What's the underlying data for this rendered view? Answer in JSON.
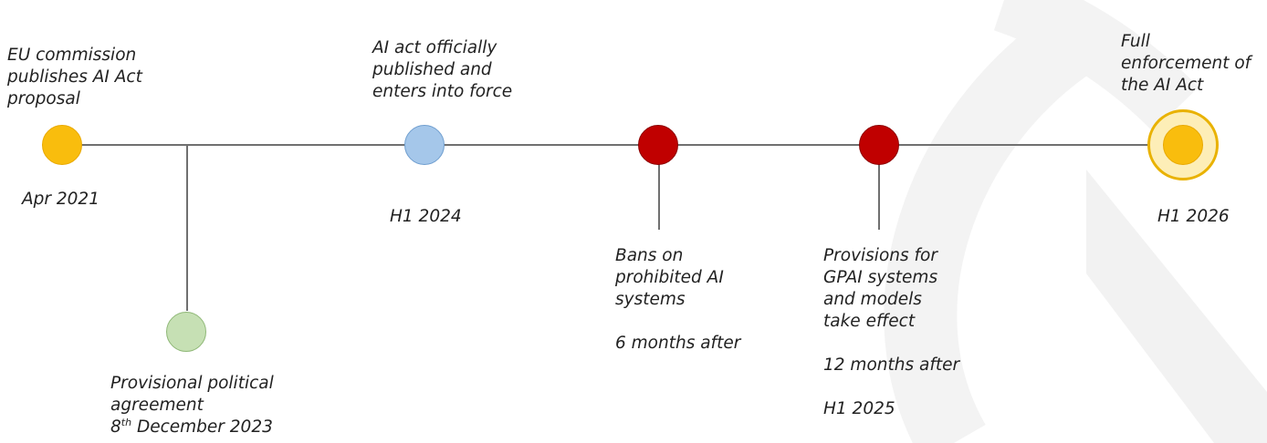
{
  "colors": {
    "yellow": "#f9bd0d",
    "blue": "#a5c7ea",
    "red": "#c00000",
    "green": "#c6e0b4",
    "final_ring": "#fdeeb7",
    "line": "#707070"
  },
  "milestones": [
    {
      "id": "proposal",
      "color": "yellow",
      "title_lines": [
        "EU commission",
        "publishes AI Act",
        "proposal"
      ],
      "date": "Apr 2021"
    },
    {
      "id": "agreement",
      "color": "green",
      "title_lines": [
        "Provisional political",
        "agreement"
      ],
      "date_sup": "th",
      "date_prefix": "8",
      "date_rest": " December 2023"
    },
    {
      "id": "entry-into-force",
      "color": "blue",
      "title_lines": [
        "AI act officially",
        "published and",
        "enters into force"
      ],
      "date": "H1 2024"
    },
    {
      "id": "bans",
      "color": "red",
      "title_lines": [
        "Bans on",
        "prohibited AI",
        "systems"
      ],
      "note": "6 months after"
    },
    {
      "id": "gpai",
      "color": "red",
      "title_lines": [
        "Provisions for",
        "GPAI systems",
        "and models",
        "take effect"
      ],
      "note": "12 months after",
      "date": "H1 2025"
    },
    {
      "id": "full-enforcement",
      "color": "yellow",
      "title_lines": [
        "Full",
        "enforcement of",
        "the AI Act"
      ],
      "date": "H1 2026"
    }
  ]
}
